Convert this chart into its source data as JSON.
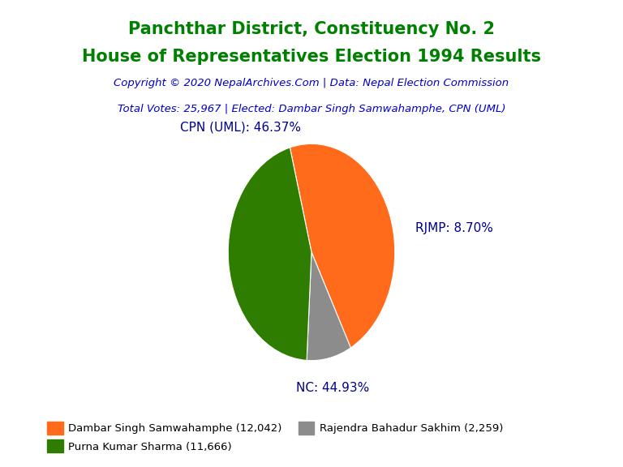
{
  "title_line1": "Panchthar District, Constituency No. 2",
  "title_line2": "House of Representatives Election 1994 Results",
  "title_color": "#008000",
  "copyright_text": "Copyright © 2020 NepalArchives.Com | Data: Nepal Election Commission",
  "info_text": "Total Votes: 25,967 | Elected: Dambar Singh Samwahamphe, CPN (UML)",
  "subtitle_color": "#0000CD",
  "slices": [
    12042,
    2259,
    11666
  ],
  "labels": [
    "CPN (UML): 46.37%",
    "RJMP: 8.70%",
    "NC: 44.93%"
  ],
  "colors": [
    "#FF6B1A",
    "#8C8C8C",
    "#2E7D00"
  ],
  "legend_labels": [
    "Dambar Singh Samwahamphe (12,042)",
    "Purna Kumar Sharma (11,666)",
    "Rajendra Bahadur Sakhim (2,259)"
  ],
  "legend_colors": [
    "#FF6B1A",
    "#2E7D00",
    "#8C8C8C"
  ],
  "label_color": "#00008B",
  "background_color": "#FFFFFF",
  "startangle": 105
}
